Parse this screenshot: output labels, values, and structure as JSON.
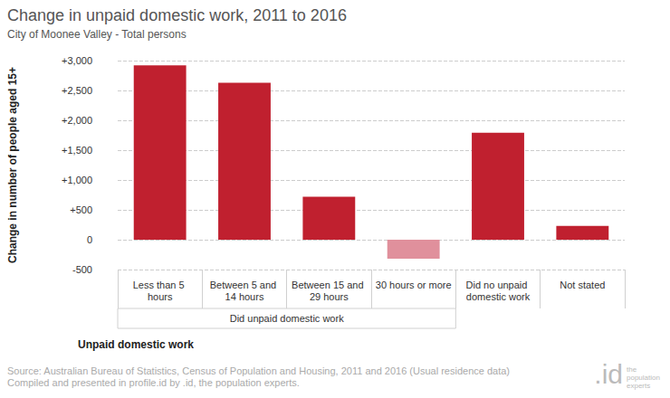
{
  "chart_data": {
    "type": "bar",
    "title": "Change in unpaid domestic work, 2011 to 2016",
    "subtitle": "City of Moonee Valley - Total persons",
    "x_label": "Unpaid domestic work",
    "y_label": "Change in number of people aged 15+",
    "categories": [
      "Less than 5 hours",
      "Between 5 and 14 hours",
      "Between 15 and 29 hours",
      "30 hours or more",
      "Did no unpaid domestic work",
      "Not stated"
    ],
    "values": [
      2920,
      2630,
      720,
      -320,
      1790,
      230
    ],
    "colors": [
      "#c0202f",
      "#c0202f",
      "#c0202f",
      "#e0909c",
      "#c0202f",
      "#c0202f"
    ],
    "ylim": [
      -500,
      3000
    ],
    "yticks": [
      {
        "value": -500,
        "label": "-500"
      },
      0,
      {
        "value": 500,
        "label": "+500"
      },
      {
        "value": 1000,
        "label": "+1,000"
      },
      {
        "value": 1500,
        "label": "+1,500"
      },
      {
        "value": 2000,
        "label": "+2,000"
      },
      {
        "value": 2500,
        "label": "+2,500"
      },
      {
        "value": 3000,
        "label": "+3,000"
      }
    ],
    "grid": true,
    "annotations": [
      {
        "text": "Did unpaid domestic work",
        "span": [
          "Less than 5 hours",
          "30 hours or more"
        ]
      }
    ],
    "source": [
      "Source: Australian Bureau of Statistics, Census of Population and Housing, 2011 and 2016 (Usual residence data)",
      "Compiled and presented in profile.id by .id, the population experts."
    ],
    "logo": {
      "mark": ".id",
      "text": "the population experts"
    }
  }
}
